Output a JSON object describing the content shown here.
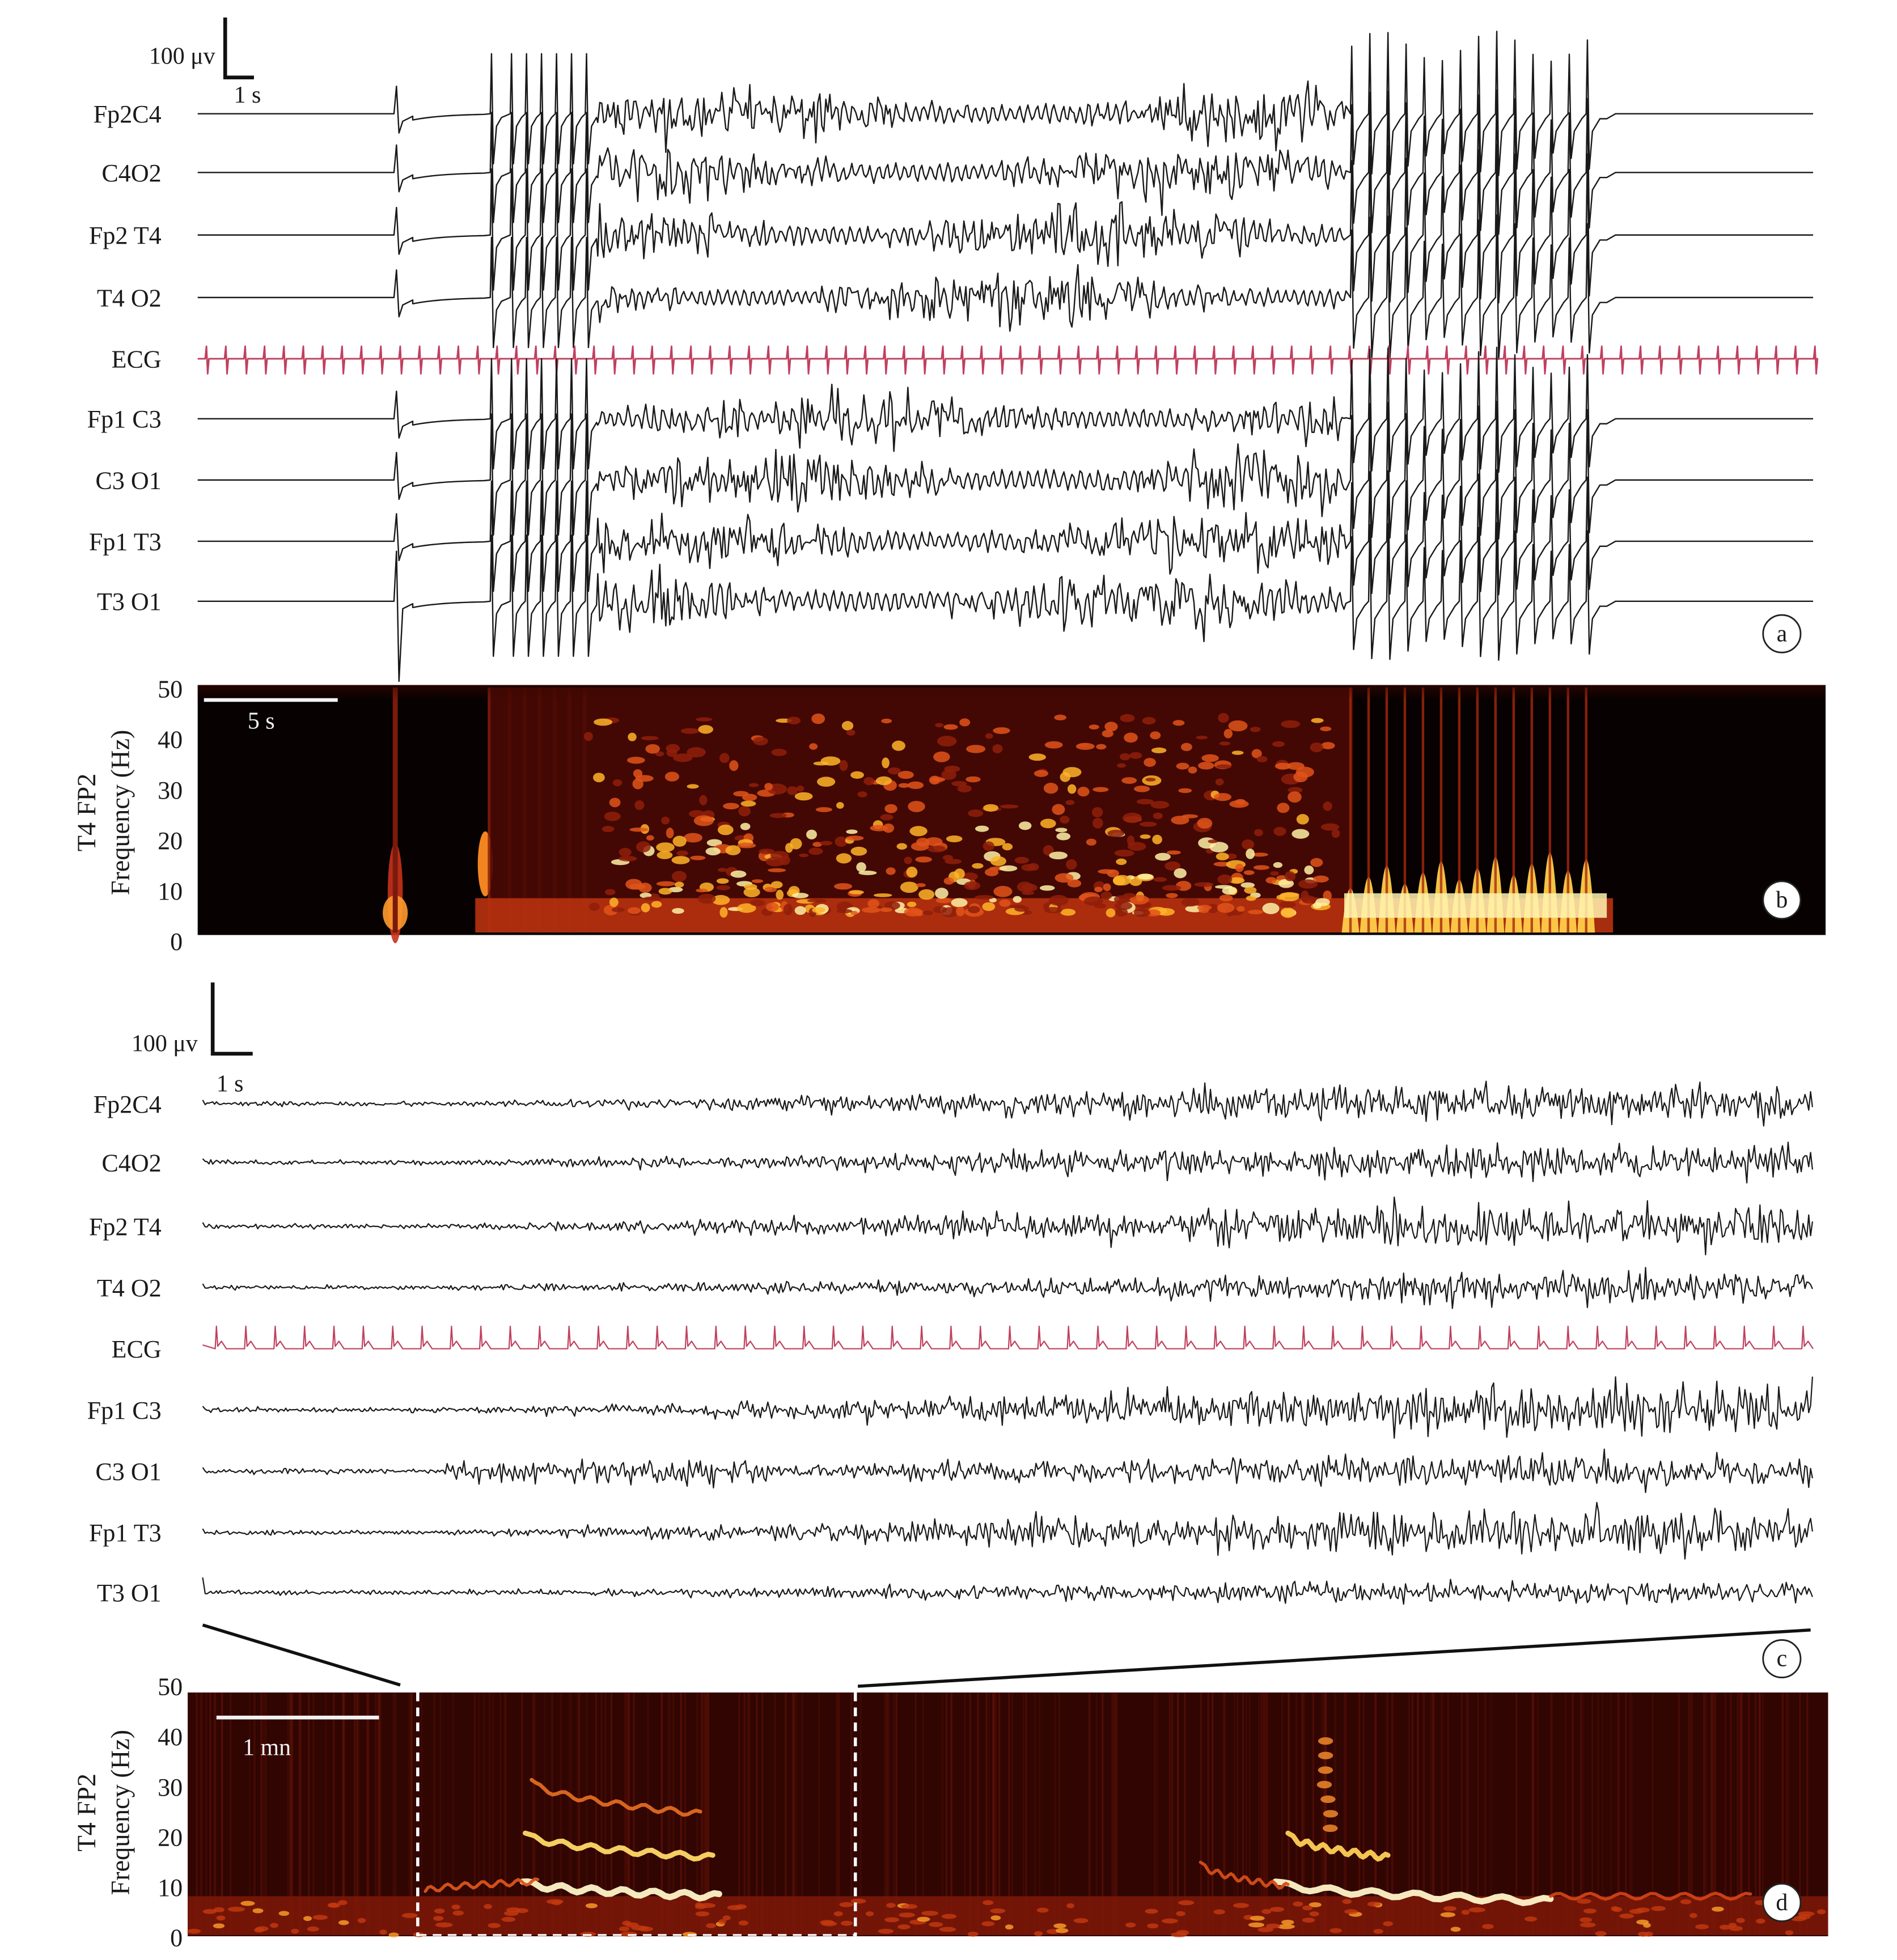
{
  "figure": {
    "panel_letters": [
      "a",
      "b",
      "c",
      "d"
    ],
    "channels_a": [
      "Fp2C4",
      "C4O2",
      "Fp2 T4",
      "T4 O2",
      "ECG",
      "Fp1 C3",
      "C3 O1",
      "Fp1 T3",
      "T3 O1"
    ],
    "channels_c": [
      "Fp2C4",
      "C4O2",
      "Fp2 T4",
      "T4 O2",
      "ECG",
      "Fp1 C3",
      "C3 O1",
      "Fp1 T3",
      "T3 O1"
    ],
    "scale_a": {
      "amplitude": "100 μv",
      "time": "1 s"
    },
    "scale_c": {
      "amplitude": "100 μv",
      "time": "1 s"
    },
    "spectrogram_b": {
      "scale": "5 s",
      "ylabel": "Frequency (Hz)",
      "channel_label": "T4 FP2"
    },
    "spectrogram_d": {
      "scale": "1 mn",
      "ylabel": "Frequency (Hz)",
      "channel_label": "T4 FP2"
    }
  },
  "chart_data": [
    {
      "type": "line",
      "panel": "a",
      "series": [
        {
          "name": "Fp2C4"
        },
        {
          "name": "C4O2"
        },
        {
          "name": "Fp2 T4"
        },
        {
          "name": "T4 O2"
        },
        {
          "name": "ECG",
          "color": "#c0405e"
        },
        {
          "name": "Fp1 C3"
        },
        {
          "name": "C3 O1"
        },
        {
          "name": "Fp1 T3"
        },
        {
          "name": "T3 O1"
        }
      ],
      "segments": [
        "baseline",
        "spikes",
        "fast discharge",
        "rhythmic spikes",
        "baseline"
      ]
    },
    {
      "type": "heatmap",
      "panel": "b",
      "ylabel": "Frequency (Hz)",
      "yticks": [
        0,
        10,
        20,
        30,
        40,
        50
      ],
      "ylim": [
        0,
        50
      ],
      "colormap": "hot"
    },
    {
      "type": "line",
      "panel": "c",
      "series": [
        {
          "name": "Fp2C4"
        },
        {
          "name": "C4O2"
        },
        {
          "name": "Fp2 T4"
        },
        {
          "name": "T4 O2"
        },
        {
          "name": "ECG",
          "color": "#c0405e"
        },
        {
          "name": "Fp1 C3"
        },
        {
          "name": "C3 O1"
        },
        {
          "name": "Fp1 T3"
        },
        {
          "name": "T3 O1"
        }
      ]
    },
    {
      "type": "heatmap",
      "panel": "d",
      "ylabel": "Frequency (Hz)",
      "yticks": [
        0,
        10,
        20,
        30,
        40,
        50
      ],
      "ylim": [
        0,
        50
      ],
      "colormap": "hot"
    }
  ]
}
